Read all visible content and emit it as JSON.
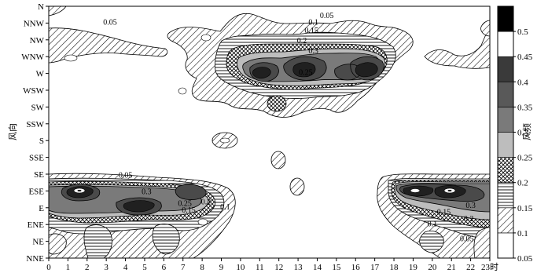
{
  "chart_data": {
    "type": "contour",
    "xlabel": "时",
    "ylabel": "风向",
    "colorbar_label": "风频",
    "x_ticks": [
      "0",
      "1",
      "2",
      "3",
      "4",
      "5",
      "6",
      "7",
      "8",
      "9",
      "10",
      "11",
      "12",
      "13",
      "14",
      "15",
      "16",
      "17",
      "18",
      "19",
      "20",
      "21",
      "22",
      "23"
    ],
    "y_ticks": [
      "NNE",
      "NE",
      "ENE",
      "E",
      "ESE",
      "SE",
      "SSE",
      "S",
      "SSW",
      "SW",
      "WSW",
      "W",
      "WNW",
      "NW",
      "NNW",
      "N"
    ],
    "xlim": [
      0,
      23
    ],
    "ylim_index": [
      0,
      15
    ],
    "levels": [
      "0.05",
      "0.1",
      "0.15",
      "0.2",
      "0.25",
      "0.3",
      "0.35",
      "0.4",
      "0.45",
      "0.5"
    ],
    "level_fills": [
      "#ffffff",
      "hatch-diag",
      "hatch-horiz",
      "hatch-cross",
      "#bdbdbd",
      "#7a7a7a",
      "#595959",
      "#3a3a3a",
      "#ffffff",
      "#000000"
    ],
    "contour_labels": [
      {
        "text": "0.05",
        "x": 3.2,
        "y": 13.9
      },
      {
        "text": "0.05",
        "x": 14.5,
        "y": 14.3
      },
      {
        "text": "0.1",
        "x": 13.8,
        "y": 13.9
      },
      {
        "text": "0.15",
        "x": 13.7,
        "y": 13.4
      },
      {
        "text": "0.2",
        "x": 13.2,
        "y": 12.8
      },
      {
        "text": "0.3",
        "x": 13.8,
        "y": 12.2
      },
      {
        "text": "0.25",
        "x": 13.4,
        "y": 10.9
      },
      {
        "text": "0.05",
        "x": 4.0,
        "y": 4.8
      },
      {
        "text": "0.3",
        "x": 5.1,
        "y": 3.8
      },
      {
        "text": "0.25",
        "x": 7.1,
        "y": 3.1
      },
      {
        "text": "0.15",
        "x": 7.3,
        "y": 2.7
      },
      {
        "text": "0.2",
        "x": 8.2,
        "y": 3.2
      },
      {
        "text": "0.1",
        "x": 9.2,
        "y": 2.9
      },
      {
        "text": "0.3",
        "x": 22.0,
        "y": 3.0
      },
      {
        "text": "0.15",
        "x": 20.6,
        "y": 2.6
      },
      {
        "text": "0.2",
        "x": 21.9,
        "y": 2.2
      },
      {
        "text": "0.1",
        "x": 20.0,
        "y": 1.9
      },
      {
        "text": "0.05",
        "x": 21.8,
        "y": 1.0
      }
    ]
  }
}
